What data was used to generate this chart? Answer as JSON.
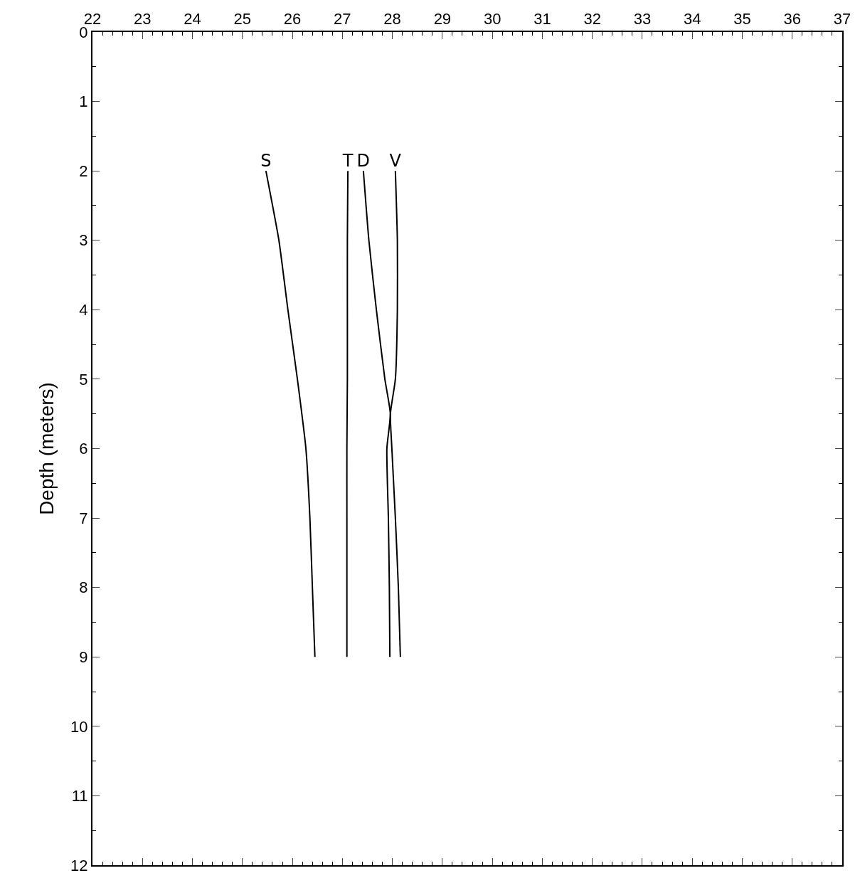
{
  "chart_data": {
    "type": "line",
    "ylabel": "Depth (meters)",
    "xlim": [
      22,
      37
    ],
    "xticks": [
      22,
      23,
      24,
      25,
      26,
      27,
      28,
      29,
      30,
      31,
      32,
      33,
      34,
      35,
      36,
      37
    ],
    "ylim": [
      12,
      0
    ],
    "yticks": [
      0,
      1,
      2,
      3,
      4,
      5,
      6,
      7,
      8,
      9,
      10,
      11,
      12
    ],
    "legend": false,
    "marker": "none",
    "line_style": "solid",
    "series": [
      {
        "name": "S",
        "color": "#000000",
        "x": [
          25.47,
          25.73,
          25.91,
          26.1,
          26.27,
          26.35,
          26.4,
          26.45
        ],
        "values": [
          2,
          3,
          4,
          5,
          6,
          7,
          8,
          9
        ]
      },
      {
        "name": "T",
        "color": "#000000",
        "x": [
          27.11,
          27.1,
          27.1,
          27.1,
          27.09,
          27.09,
          27.09,
          27.09
        ],
        "values": [
          2,
          3,
          4,
          5,
          6,
          7,
          8,
          9
        ]
      },
      {
        "name": "D",
        "color": "#000000",
        "x": [
          27.42,
          27.53,
          27.68,
          27.85,
          27.96,
          27.89,
          27.92,
          27.94,
          27.95
        ],
        "values": [
          2,
          3,
          4,
          5,
          5.5,
          6,
          7,
          8,
          9
        ]
      },
      {
        "name": "V",
        "color": "#000000",
        "x": [
          28.06,
          28.1,
          28.1,
          28.06,
          27.96,
          27.99,
          28.06,
          28.12,
          28.16
        ],
        "values": [
          2,
          3,
          4,
          5,
          5.5,
          6,
          7,
          8,
          9
        ]
      }
    ]
  }
}
